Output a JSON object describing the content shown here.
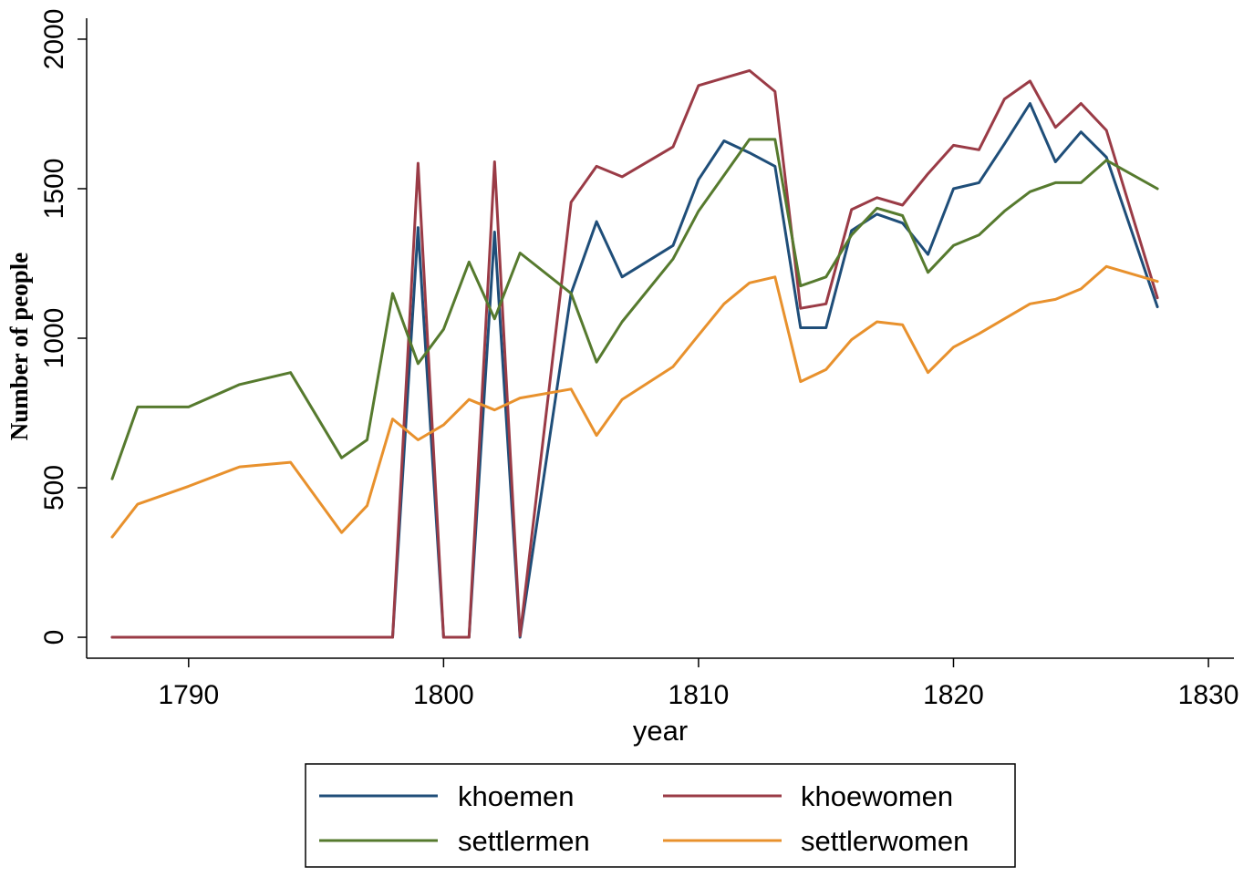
{
  "chart_data": {
    "type": "line",
    "xlabel": "year",
    "ylabel": "Number of people",
    "xlim": [
      1786,
      1831
    ],
    "ylim": [
      -70,
      2070
    ],
    "xticks": [
      1790,
      1800,
      1810,
      1820,
      1830
    ],
    "yticks": [
      0,
      500,
      1000,
      1500,
      2000
    ],
    "grid": false,
    "legend_position": "bottom",
    "series": [
      {
        "name": "khoemen",
        "color": "#1f4e79",
        "points": [
          [
            1787,
            0
          ],
          [
            1788,
            0
          ],
          [
            1790,
            0
          ],
          [
            1792,
            0
          ],
          [
            1794,
            0
          ],
          [
            1796,
            0
          ],
          [
            1797,
            0
          ],
          [
            1798,
            0
          ],
          [
            1799,
            1370
          ],
          [
            1800,
            0
          ],
          [
            1801,
            0
          ],
          [
            1802,
            1355
          ],
          [
            1803,
            0
          ],
          [
            1805,
            1150
          ],
          [
            1806,
            1390
          ],
          [
            1807,
            1205
          ],
          [
            1809,
            1310
          ],
          [
            1810,
            1530
          ],
          [
            1811,
            1660
          ],
          [
            1812,
            1620
          ],
          [
            1813,
            1575
          ],
          [
            1814,
            1035
          ],
          [
            1815,
            1035
          ],
          [
            1816,
            1360
          ],
          [
            1817,
            1415
          ],
          [
            1818,
            1385
          ],
          [
            1819,
            1280
          ],
          [
            1820,
            1500
          ],
          [
            1821,
            1520
          ],
          [
            1822,
            1650
          ],
          [
            1823,
            1785
          ],
          [
            1824,
            1590
          ],
          [
            1825,
            1690
          ],
          [
            1826,
            1605
          ],
          [
            1828,
            1105
          ]
        ]
      },
      {
        "name": "khoewomen",
        "color": "#9a3b46",
        "points": [
          [
            1787,
            0
          ],
          [
            1788,
            0
          ],
          [
            1790,
            0
          ],
          [
            1792,
            0
          ],
          [
            1794,
            0
          ],
          [
            1796,
            0
          ],
          [
            1797,
            0
          ],
          [
            1798,
            0
          ],
          [
            1799,
            1585
          ],
          [
            1800,
            0
          ],
          [
            1801,
            0
          ],
          [
            1802,
            1590
          ],
          [
            1803,
            5
          ],
          [
            1805,
            1455
          ],
          [
            1806,
            1575
          ],
          [
            1807,
            1540
          ],
          [
            1809,
            1640
          ],
          [
            1810,
            1845
          ],
          [
            1811,
            1870
          ],
          [
            1812,
            1895
          ],
          [
            1813,
            1825
          ],
          [
            1814,
            1100
          ],
          [
            1815,
            1115
          ],
          [
            1816,
            1430
          ],
          [
            1817,
            1470
          ],
          [
            1818,
            1445
          ],
          [
            1819,
            1550
          ],
          [
            1820,
            1645
          ],
          [
            1821,
            1630
          ],
          [
            1822,
            1800
          ],
          [
            1823,
            1860
          ],
          [
            1824,
            1705
          ],
          [
            1825,
            1785
          ],
          [
            1826,
            1695
          ],
          [
            1828,
            1135
          ]
        ]
      },
      {
        "name": "settlermen",
        "color": "#567a2e",
        "points": [
          [
            1787,
            530
          ],
          [
            1788,
            770
          ],
          [
            1790,
            770
          ],
          [
            1792,
            845
          ],
          [
            1794,
            885
          ],
          [
            1796,
            600
          ],
          [
            1797,
            660
          ],
          [
            1798,
            1150
          ],
          [
            1799,
            915
          ],
          [
            1800,
            1030
          ],
          [
            1801,
            1255
          ],
          [
            1802,
            1065
          ],
          [
            1803,
            1285
          ],
          [
            1805,
            1150
          ],
          [
            1806,
            920
          ],
          [
            1807,
            1055
          ],
          [
            1809,
            1265
          ],
          [
            1810,
            1425
          ],
          [
            1811,
            1545
          ],
          [
            1812,
            1665
          ],
          [
            1813,
            1665
          ],
          [
            1814,
            1175
          ],
          [
            1815,
            1205
          ],
          [
            1816,
            1345
          ],
          [
            1817,
            1435
          ],
          [
            1818,
            1410
          ],
          [
            1819,
            1220
          ],
          [
            1820,
            1310
          ],
          [
            1821,
            1345
          ],
          [
            1822,
            1425
          ],
          [
            1823,
            1490
          ],
          [
            1824,
            1520
          ],
          [
            1825,
            1520
          ],
          [
            1826,
            1595
          ],
          [
            1828,
            1500
          ]
        ]
      },
      {
        "name": "settlerwomen",
        "color": "#e8912d",
        "points": [
          [
            1787,
            335
          ],
          [
            1788,
            445
          ],
          [
            1790,
            505
          ],
          [
            1792,
            570
          ],
          [
            1794,
            585
          ],
          [
            1796,
            350
          ],
          [
            1797,
            440
          ],
          [
            1798,
            730
          ],
          [
            1799,
            660
          ],
          [
            1800,
            710
          ],
          [
            1801,
            795
          ],
          [
            1802,
            760
          ],
          [
            1803,
            800
          ],
          [
            1805,
            830
          ],
          [
            1806,
            675
          ],
          [
            1807,
            795
          ],
          [
            1809,
            905
          ],
          [
            1810,
            1010
          ],
          [
            1811,
            1115
          ],
          [
            1812,
            1185
          ],
          [
            1813,
            1205
          ],
          [
            1814,
            855
          ],
          [
            1815,
            895
          ],
          [
            1816,
            995
          ],
          [
            1817,
            1055
          ],
          [
            1818,
            1045
          ],
          [
            1819,
            885
          ],
          [
            1820,
            970
          ],
          [
            1821,
            1015
          ],
          [
            1822,
            1065
          ],
          [
            1823,
            1115
          ],
          [
            1824,
            1130
          ],
          [
            1825,
            1165
          ],
          [
            1826,
            1240
          ],
          [
            1828,
            1190
          ]
        ]
      }
    ]
  }
}
